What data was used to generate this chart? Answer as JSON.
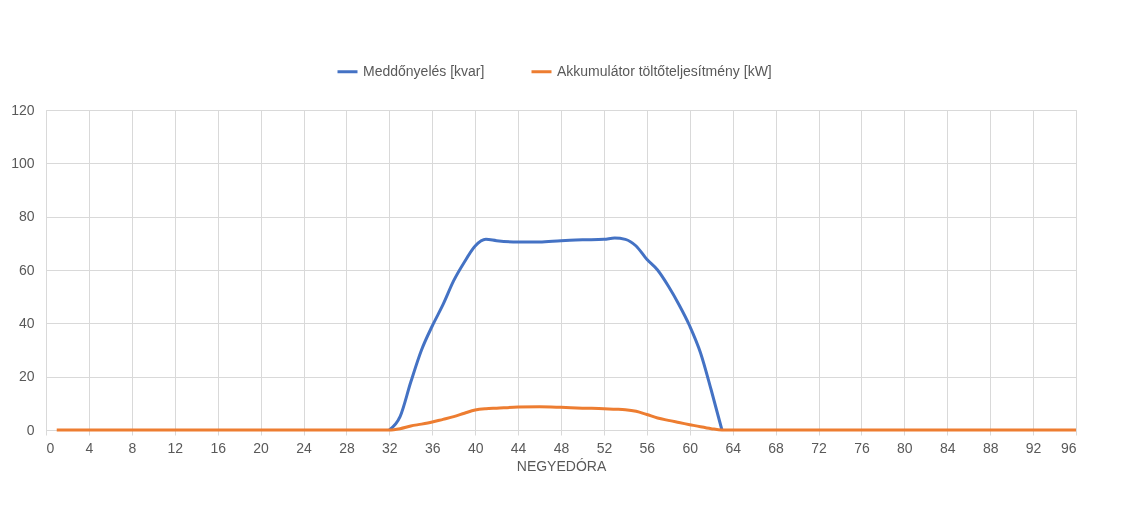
{
  "chart_data": {
    "type": "line",
    "xlabel": "NEGYEDÓRA",
    "x": [
      1,
      8,
      16,
      24,
      32,
      33,
      34,
      35,
      36,
      37,
      38,
      39,
      40,
      41,
      42,
      44,
      46,
      48,
      50,
      52,
      53,
      54,
      55,
      56,
      57,
      58,
      59,
      60,
      61,
      62,
      63,
      64,
      72,
      80,
      88,
      96
    ],
    "series": [
      {
        "name": "Meddőnyelés [kvar]",
        "color": "#4472c4",
        "values": [
          null,
          null,
          null,
          null,
          0,
          5,
          18,
          30,
          39,
          47,
          56,
          63,
          69,
          71.5,
          71,
          70.5,
          70.5,
          71,
          71.3,
          71.5,
          72,
          71.5,
          69,
          64,
          60,
          54,
          47,
          39,
          29,
          15,
          0,
          null,
          null,
          null,
          null,
          null
        ]
      },
      {
        "name": "Akkumulátor töltőteljesítmény [kW]",
        "color": "#ed7d31",
        "values": [
          0,
          0,
          0,
          0,
          0,
          0.5,
          1.5,
          2.2,
          3,
          4,
          5,
          6.3,
          7.5,
          8,
          8.2,
          8.6,
          8.7,
          8.5,
          8.2,
          8,
          7.8,
          7.6,
          7,
          5.8,
          4.5,
          3.6,
          2.8,
          2,
          1.2,
          0.5,
          0,
          0,
          0,
          0,
          0,
          0
        ]
      }
    ],
    "xlim": [
      0,
      96
    ],
    "xticks": [
      0,
      4,
      8,
      12,
      16,
      20,
      24,
      28,
      32,
      36,
      40,
      44,
      48,
      52,
      56,
      60,
      64,
      68,
      72,
      76,
      80,
      84,
      88,
      92,
      96
    ],
    "ylim": [
      0,
      120
    ],
    "yticks": [
      0,
      20,
      40,
      60,
      80,
      100,
      120
    ],
    "grid": true,
    "legend": "top",
    "marker": "none",
    "line_style": "solid"
  }
}
